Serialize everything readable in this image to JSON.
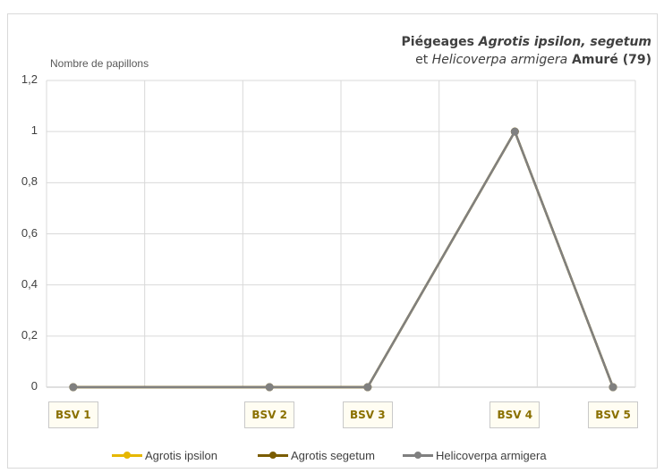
{
  "chart_data": {
    "type": "line",
    "title_parts": {
      "line1_bold": "Piégeages ",
      "line1_italic": "Agrotis ipsilon, segetum",
      "line2_plain": "et ",
      "line2_italic": "Helicoverpa armigera",
      "line2_bold": " Amuré (79)"
    },
    "ylabel": "Nombre de papillons",
    "ylim": [
      0,
      1.2
    ],
    "yticks": [
      "0",
      "0,2",
      "0,4",
      "0,6",
      "0,8",
      "1",
      "1,2"
    ],
    "x_count": 6,
    "grid": true,
    "series": [
      {
        "name": "Agrotis ipsilon",
        "color": "#e6b700",
        "x": [
          0,
          2,
          3,
          4.5,
          5.5
        ],
        "values": [
          0,
          0,
          0,
          1,
          0
        ]
      },
      {
        "name": "Agrotis segetum",
        "color": "#7a5c00",
        "x": [
          0,
          2,
          3,
          4.5,
          5.5
        ],
        "values": [
          0,
          0,
          0,
          1,
          0
        ]
      },
      {
        "name": "Helicoverpa armigera",
        "color": "#808080",
        "x": [
          0,
          2,
          3,
          4.5,
          5.5
        ],
        "values": [
          0,
          0,
          0,
          1,
          0
        ]
      }
    ],
    "annotations": [
      {
        "label": "BSV 1",
        "x": 0
      },
      {
        "label": "BSV 2",
        "x": 2
      },
      {
        "label": "BSV 3",
        "x": 3
      },
      {
        "label": "BSV 4",
        "x": 4.5
      },
      {
        "label": "BSV 5",
        "x": 5.5
      }
    ],
    "legend": "bottom"
  }
}
